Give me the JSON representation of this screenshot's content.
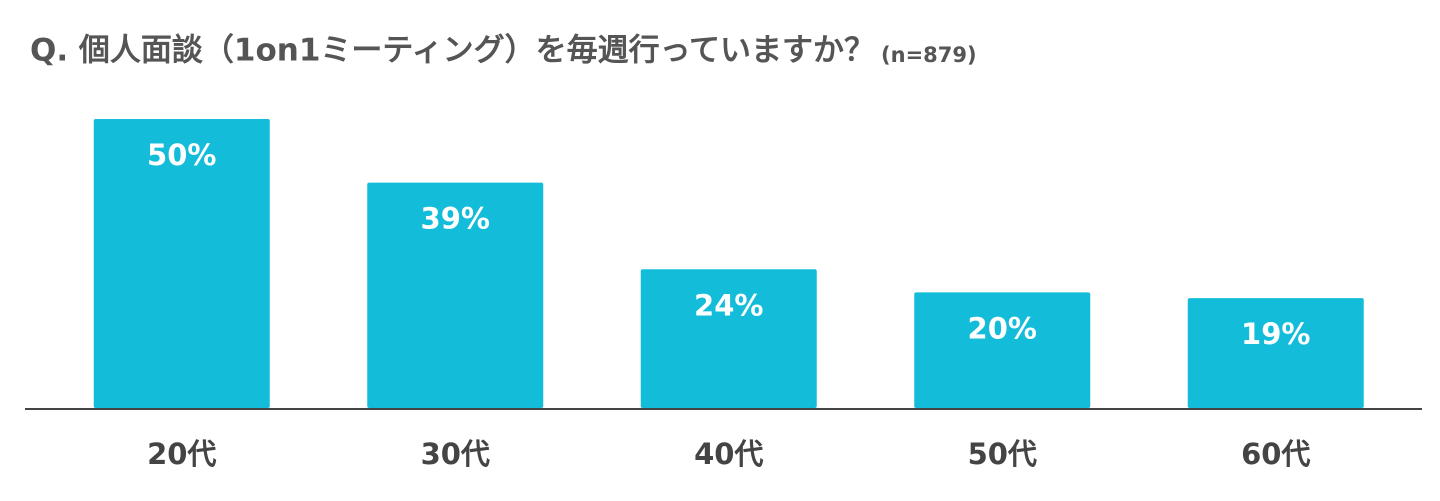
{
  "chart_data": {
    "type": "bar",
    "title": "Q. 個人面談（1on1ミーティング）を毎週行っていますか？",
    "subtitle": "(n=879)",
    "categories": [
      "20代",
      "30代",
      "40代",
      "50代",
      "60代"
    ],
    "values": [
      50,
      39,
      24,
      20,
      19
    ],
    "value_labels": [
      "50%",
      "39%",
      "24%",
      "20%",
      "19%"
    ],
    "color": "#13bdd9"
  }
}
